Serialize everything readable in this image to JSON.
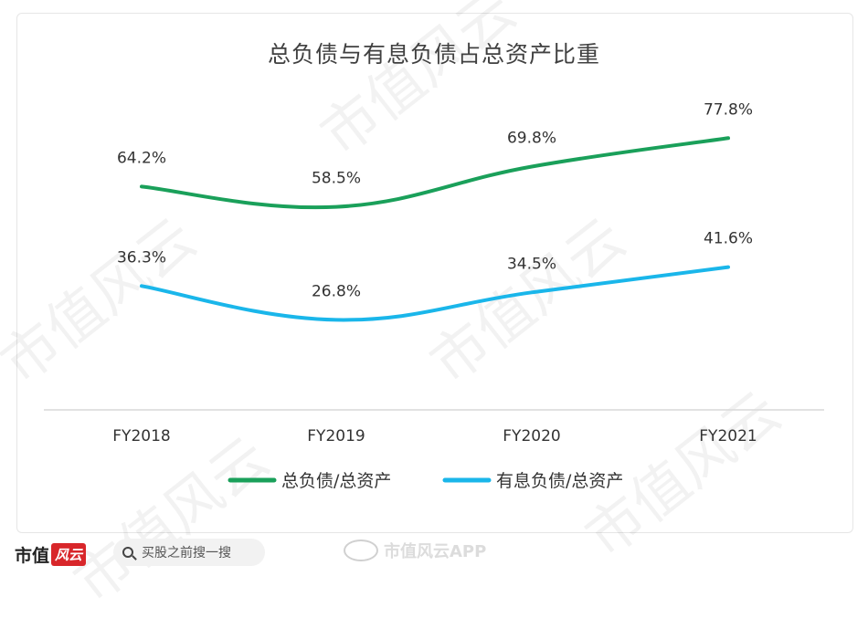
{
  "chart_data": {
    "type": "line",
    "title": "总负债与有息负债占总资产比重",
    "categories": [
      "FY2018",
      "FY2019",
      "FY2020",
      "FY2021"
    ],
    "series": [
      {
        "name": "总负债/总资产",
        "values": [
          64.2,
          58.5,
          69.8,
          77.8
        ],
        "labels": [
          "64.2%",
          "58.5%",
          "69.8%",
          "77.8%"
        ],
        "color": "#1aa05a"
      },
      {
        "name": "有息负债/总资产",
        "values": [
          36.3,
          26.8,
          34.5,
          41.6
        ],
        "labels": [
          "36.3%",
          "26.8%",
          "34.5%",
          "41.6%"
        ],
        "color": "#1ab6ea"
      }
    ],
    "ylim": [
      0,
      90
    ],
    "grid": false,
    "legend": "bottom",
    "smooth": true
  },
  "watermark": "市值风云",
  "footer": {
    "logo_text": "市值",
    "logo_badge": "风云",
    "search_text": "买股之前搜一搜",
    "weibo_text": "市值风云APP"
  }
}
